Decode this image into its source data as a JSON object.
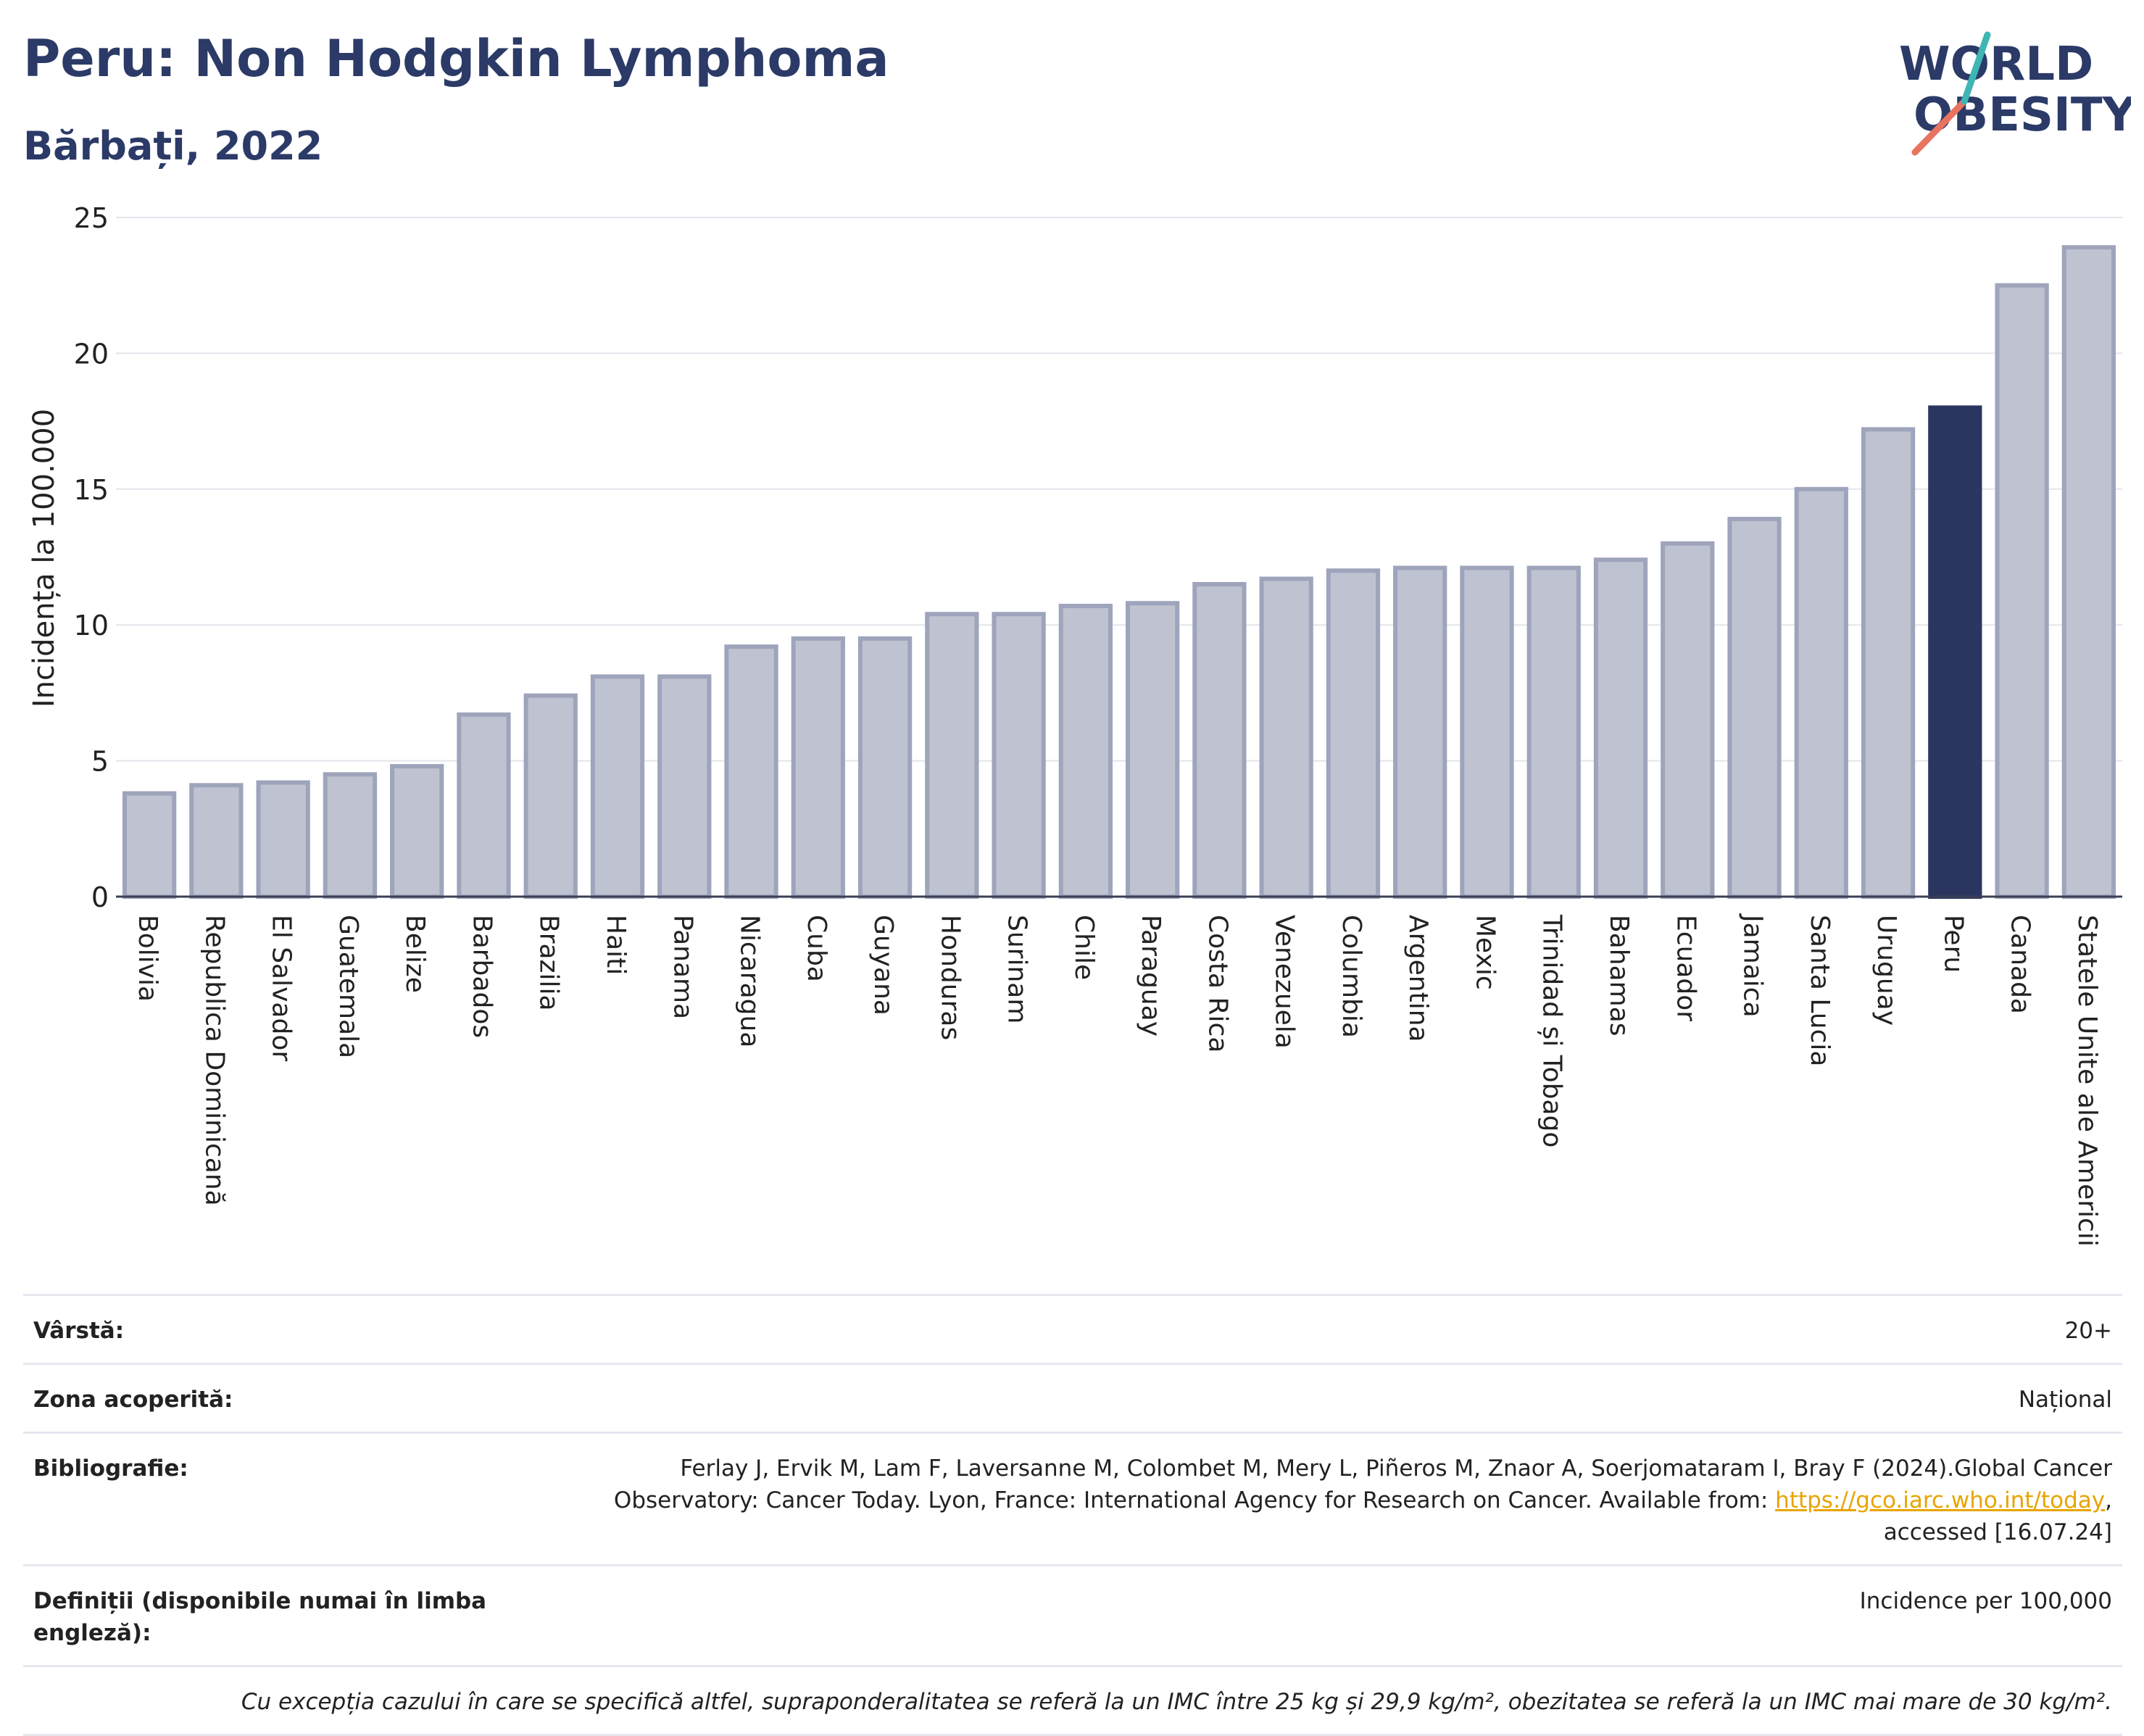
{
  "header": {
    "title": "Peru: Non Hodgkin Lymphoma",
    "subtitle": "Bărbați, 2022"
  },
  "logo": {
    "line1": "WORLD",
    "line2": "OBESITY"
  },
  "colors": {
    "highlight": "#2b3660",
    "bar_fill": "#bfc3d1",
    "bar_stroke": "#9ea4bb",
    "title": "#2b3a67"
  },
  "chart_data": {
    "type": "bar",
    "title": "",
    "xlabel": "",
    "ylabel": "Incidența la 100.000",
    "ylim": [
      0,
      25
    ],
    "yticks": [
      0,
      5,
      10,
      15,
      20,
      25
    ],
    "grid": true,
    "highlight": "Peru",
    "categories": [
      "Bolivia",
      "Republica Dominicană",
      "El Salvador",
      "Guatemala",
      "Belize",
      "Barbados",
      "Brazilia",
      "Haiti",
      "Panama",
      "Nicaragua",
      "Cuba",
      "Guyana",
      "Honduras",
      "Surinam",
      "Chile",
      "Paraguay",
      "Costa Rica",
      "Venezuela",
      "Columbia",
      "Argentina",
      "Mexic",
      "Trinidad și Tobago",
      "Bahamas",
      "Ecuador",
      "Jamaica",
      "Santa Lucia",
      "Uruguay",
      "Peru",
      "Canada",
      "Statele Unite ale Americii"
    ],
    "values": [
      3.8,
      4.1,
      4.2,
      4.5,
      4.8,
      6.7,
      7.4,
      8.1,
      8.1,
      9.2,
      9.5,
      9.5,
      10.4,
      10.4,
      10.7,
      10.8,
      11.5,
      11.7,
      12.0,
      12.1,
      12.1,
      12.1,
      12.4,
      13.0,
      13.9,
      15.0,
      17.2,
      18.0,
      22.5,
      23.9
    ]
  },
  "meta": {
    "age_label": "Vârstă:",
    "age_value": "20+",
    "area_label": "Zona acoperită:",
    "area_value": "Național",
    "biblio_label": "Bibliografie:",
    "biblio_line1": "Ferlay J, Ervik M, Lam F, Laversanne M, Colombet M, Mery L, Piñeros M, Znaor A, Soerjomataram I, Bray F (2024).Global Cancer",
    "biblio_line2_pre": "Observatory: Cancer Today. Lyon, France: International Agency for Research on Cancer. Available from: ",
    "biblio_link": "https://gco.iarc.who.int/today",
    "biblio_line2_post": ",",
    "biblio_line3": "accessed [16.07.24]",
    "def_label": "Definiții (disponibile numai în limba engleză):",
    "def_value": "Incidence per 100,000",
    "footnote": "Cu excepția cazului în care se specifică altfel, supraponderalitatea se referă la un IMC între 25 kg și 29,9 kg/m², obezitatea se referă la un IMC mai mare de 30 kg/m²."
  }
}
